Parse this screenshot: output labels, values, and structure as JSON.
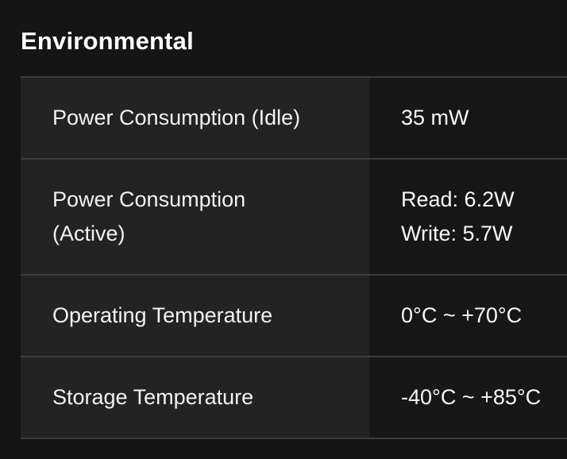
{
  "section": {
    "title": "Environmental"
  },
  "table": {
    "rows": [
      {
        "label": "Power Consumption (Idle)",
        "value": "35 mW"
      },
      {
        "label": "Power Consumption\n(Active)",
        "value": "Read: 6.2W\nWrite: 5.7W"
      },
      {
        "label": "Operating Temperature",
        "value": "0°C ~ +70°C"
      },
      {
        "label": "Storage Temperature",
        "value": "-40°C ~ +85°C"
      }
    ]
  },
  "colors": {
    "page_bg": "#151515",
    "label_cell_bg": "#232323",
    "value_cell_bg": "#171717",
    "border": "#3d3d3d",
    "title": "#ffffff",
    "label_text": "#f2f2f2",
    "value_text": "#f8f8f8"
  }
}
